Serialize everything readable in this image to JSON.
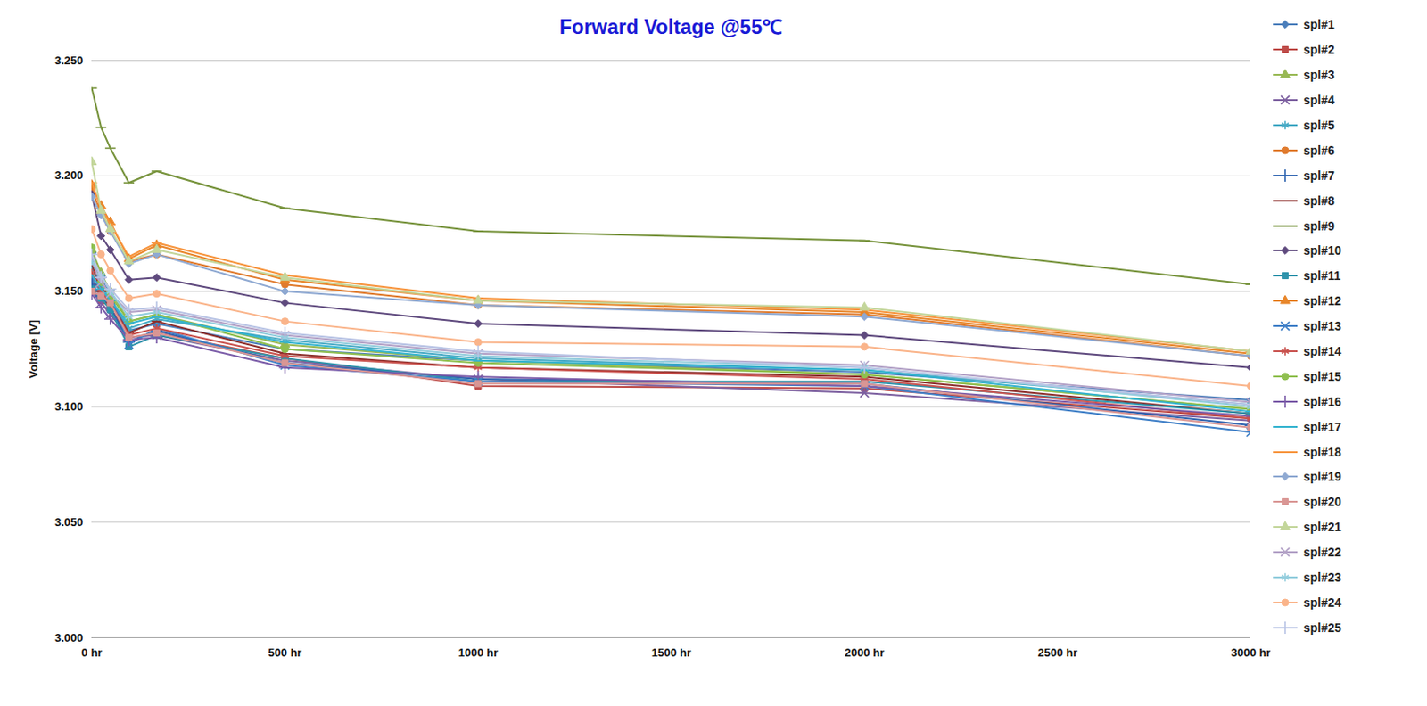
{
  "chart_data": {
    "type": "line",
    "title": "Forward Voltage @55℃",
    "y_label": "Voltage [V]",
    "x": [
      0,
      24,
      48,
      96,
      168,
      500,
      1000,
      2000,
      3000
    ],
    "xlim": [
      0,
      3000
    ],
    "xticks": [
      {
        "value": 0,
        "label": "0 hr"
      },
      {
        "value": 500,
        "label": "500 hr"
      },
      {
        "value": 1000,
        "label": "1000 hr"
      },
      {
        "value": 1500,
        "label": "1500 hr"
      },
      {
        "value": 2000,
        "label": "2000 hr"
      },
      {
        "value": 2500,
        "label": "2500 hr"
      },
      {
        "value": 3000,
        "label": "3000 hr"
      }
    ],
    "ylim": [
      3.0,
      3.25
    ],
    "yticks": [
      {
        "value": 3.0,
        "label": "3.000"
      },
      {
        "value": 3.05,
        "label": "3.050"
      },
      {
        "value": 3.1,
        "label": "3.100"
      },
      {
        "value": 3.15,
        "label": "3.150"
      },
      {
        "value": 3.2,
        "label": "3.200"
      },
      {
        "value": 3.25,
        "label": "3.250"
      }
    ],
    "grid": true,
    "legend": "right",
    "series": [
      {
        "name": "spl#1",
        "color": "#4a7ebb",
        "marker": "diamond",
        "values": [
          3.155,
          3.15,
          3.146,
          3.133,
          3.136,
          3.125,
          3.12,
          3.115,
          3.103
        ]
      },
      {
        "name": "spl#2",
        "color": "#be4b48",
        "marker": "square",
        "values": [
          3.152,
          3.146,
          3.143,
          3.13,
          3.132,
          3.121,
          3.109,
          3.108,
          3.095
        ]
      },
      {
        "name": "spl#3",
        "color": "#98b954",
        "marker": "triangle",
        "values": [
          3.168,
          3.158,
          3.15,
          3.137,
          3.14,
          3.127,
          3.12,
          3.114,
          3.099
        ]
      },
      {
        "name": "spl#4",
        "color": "#7d60a0",
        "marker": "x",
        "values": [
          3.15,
          3.145,
          3.14,
          3.13,
          3.131,
          3.12,
          3.112,
          3.106,
          3.094
        ]
      },
      {
        "name": "spl#5",
        "color": "#46aac5",
        "marker": "asterisk",
        "values": [
          3.16,
          3.152,
          3.147,
          3.134,
          3.138,
          3.129,
          3.121,
          3.116,
          3.101
        ]
      },
      {
        "name": "spl#6",
        "color": "#e07b2e",
        "marker": "circle",
        "values": [
          3.194,
          3.184,
          3.176,
          3.163,
          3.166,
          3.153,
          3.144,
          3.14,
          3.122
        ]
      },
      {
        "name": "spl#7",
        "color": "#2f64b0",
        "marker": "plus",
        "values": [
          3.153,
          3.148,
          3.143,
          3.128,
          3.133,
          3.119,
          3.112,
          3.11,
          3.092
        ]
      },
      {
        "name": "spl#8",
        "color": "#8c2e2b",
        "marker": "dash",
        "values": [
          3.162,
          3.15,
          3.145,
          3.132,
          3.137,
          3.123,
          3.117,
          3.113,
          3.097
        ]
      },
      {
        "name": "spl#9",
        "color": "#77933c",
        "marker": "dash",
        "values": [
          3.238,
          3.221,
          3.212,
          3.197,
          3.202,
          3.186,
          3.176,
          3.172,
          3.153
        ]
      },
      {
        "name": "spl#10",
        "color": "#5f4a7e",
        "marker": "diamond",
        "values": [
          3.192,
          3.174,
          3.168,
          3.155,
          3.156,
          3.145,
          3.136,
          3.131,
          3.117
        ]
      },
      {
        "name": "spl#11",
        "color": "#2e93ab",
        "marker": "square",
        "values": [
          3.151,
          3.147,
          3.142,
          3.126,
          3.131,
          3.121,
          3.111,
          3.111,
          3.097
        ]
      },
      {
        "name": "spl#12",
        "color": "#e8862a",
        "marker": "triangle",
        "values": [
          3.196,
          3.187,
          3.18,
          3.164,
          3.17,
          3.155,
          3.146,
          3.141,
          3.123
        ]
      },
      {
        "name": "spl#13",
        "color": "#3f7fc7",
        "marker": "x",
        "values": [
          3.165,
          3.155,
          3.149,
          3.127,
          3.134,
          3.118,
          3.111,
          3.109,
          3.089
        ]
      },
      {
        "name": "spl#14",
        "color": "#c9524e",
        "marker": "asterisk",
        "values": [
          3.158,
          3.15,
          3.145,
          3.131,
          3.134,
          3.122,
          3.117,
          3.112,
          3.095
        ]
      },
      {
        "name": "spl#15",
        "color": "#8fbf4f",
        "marker": "circle",
        "values": [
          3.169,
          3.154,
          3.148,
          3.137,
          3.14,
          3.125,
          3.119,
          3.114,
          3.099
        ]
      },
      {
        "name": "spl#16",
        "color": "#7b5ca8",
        "marker": "plus",
        "values": [
          3.149,
          3.143,
          3.138,
          3.129,
          3.13,
          3.117,
          3.113,
          3.109,
          3.096
        ]
      },
      {
        "name": "spl#17",
        "color": "#34b3cf",
        "marker": "dash",
        "values": [
          3.157,
          3.151,
          3.146,
          3.136,
          3.139,
          3.128,
          3.12,
          3.116,
          3.098
        ]
      },
      {
        "name": "spl#18",
        "color": "#f7953e",
        "marker": "dash",
        "values": [
          3.197,
          3.186,
          3.179,
          3.165,
          3.171,
          3.157,
          3.147,
          3.142,
          3.124
        ]
      },
      {
        "name": "spl#19",
        "color": "#8fa9d2",
        "marker": "diamond",
        "values": [
          3.191,
          3.183,
          3.176,
          3.162,
          3.166,
          3.15,
          3.144,
          3.139,
          3.122
        ]
      },
      {
        "name": "spl#20",
        "color": "#d99694",
        "marker": "square",
        "values": [
          3.15,
          3.148,
          3.145,
          3.13,
          3.132,
          3.119,
          3.11,
          3.11,
          3.091
        ]
      },
      {
        "name": "spl#21",
        "color": "#c3d69b",
        "marker": "triangle",
        "values": [
          3.206,
          3.185,
          3.177,
          3.163,
          3.168,
          3.156,
          3.146,
          3.143,
          3.124
        ]
      },
      {
        "name": "spl#22",
        "color": "#b3a2c7",
        "marker": "x",
        "values": [
          3.163,
          3.154,
          3.149,
          3.141,
          3.142,
          3.131,
          3.123,
          3.118,
          3.102
        ]
      },
      {
        "name": "spl#23",
        "color": "#93cddd",
        "marker": "asterisk",
        "values": [
          3.163,
          3.157,
          3.15,
          3.139,
          3.141,
          3.13,
          3.122,
          3.117,
          3.1
        ]
      },
      {
        "name": "spl#24",
        "color": "#fab48a",
        "marker": "circle",
        "values": [
          3.177,
          3.166,
          3.159,
          3.147,
          3.149,
          3.137,
          3.128,
          3.126,
          3.109
        ]
      },
      {
        "name": "spl#25",
        "color": "#b9c4e5",
        "marker": "plus",
        "values": [
          3.166,
          3.156,
          3.151,
          3.142,
          3.143,
          3.132,
          3.124,
          3.117,
          3.101
        ]
      }
    ]
  }
}
